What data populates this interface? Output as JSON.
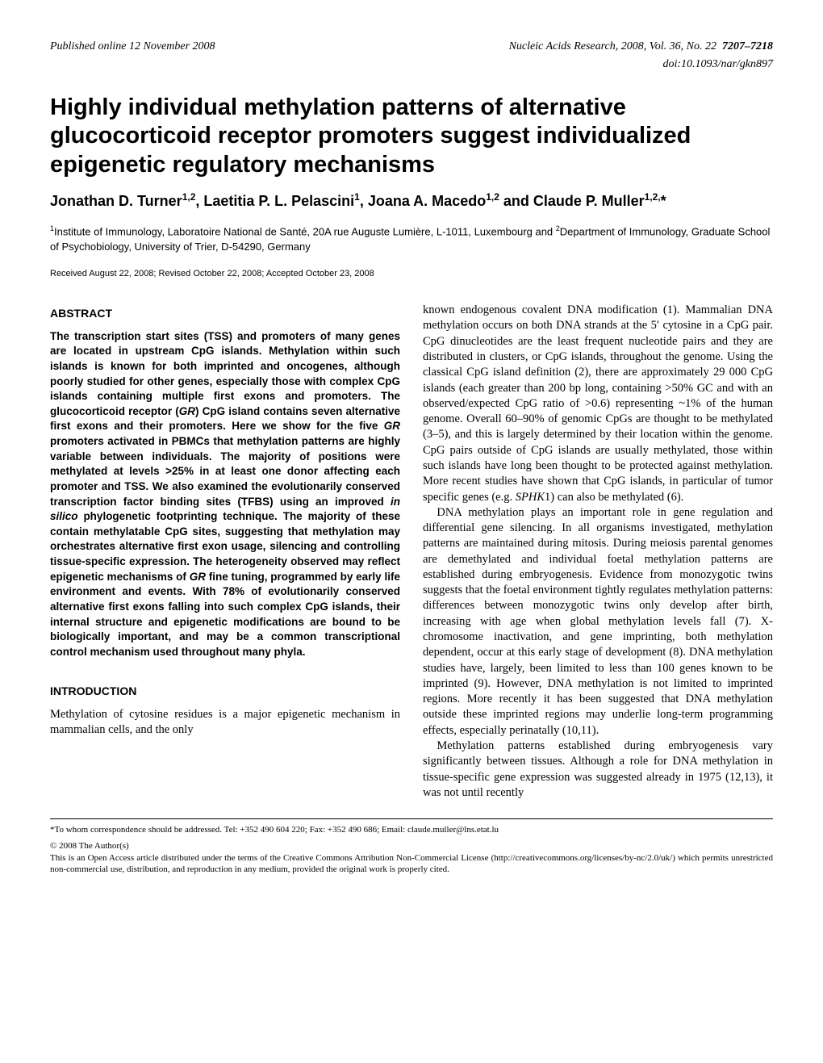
{
  "header": {
    "published": "Published online 12 November 2008",
    "journal": "Nucleic Acids Research, 2008, Vol. 36, No. 22",
    "pages": "7207–7218",
    "doi": "doi:10.1093/nar/gkn897"
  },
  "title": "Highly individual methylation patterns of alternative glucocorticoid receptor promoters suggest individualized epigenetic regulatory mechanisms",
  "authors_html": "Jonathan D. Turner<sup>1,2</sup>, Laetitia P. L. Pelascini<sup>1</sup>, Joana A. Macedo<sup>1,2</sup> and Claude P. Muller<sup>1,2,</sup>*",
  "affiliations_html": "<sup>1</sup>Institute of Immunology, Laboratoire National de Santé, 20A rue Auguste Lumière, L-1011, Luxembourg and <sup>2</sup>Department of Immunology, Graduate School of Psychobiology, University of Trier, D-54290, Germany",
  "received": "Received August 22, 2008; Revised October 22, 2008; Accepted October 23, 2008",
  "abstract_heading": "ABSTRACT",
  "abstract_html": "The transcription start sites (TSS) and promoters of many genes are located in upstream CpG islands. Methylation within such islands is known for both imprinted and oncogenes, although poorly studied for other genes, especially those with complex CpG islands containing multiple first exons and promoters. The glucocorticoid receptor (<span class=\"ital\">GR</span>) CpG island contains seven alternative first exons and their promoters. Here we show for the five <span class=\"ital\">GR</span> promoters activated in PBMCs that methylation patterns are highly variable between individuals. The majority of positions were methylated at levels >25% in at least one donor affecting each promoter and TSS. We also examined the evolutionarily conserved transcription factor binding sites (TFBS) using an improved <span class=\"ital\">in silico</span> phylogenetic footprinting technique. The majority of these contain methylatable CpG sites, suggesting that methylation may orchestrates alternative first exon usage, silencing and controlling tissue-specific expression. The heterogeneity observed may reflect epigenetic mechanisms of <span class=\"ital\">GR</span> fine tuning, programmed by early life environment and events. With 78% of evolutionarily conserved alternative first exons falling into such complex CpG islands, their internal structure and epigenetic modifications are bound to be biologically important, and may be a common transcriptional control mechanism used throughout many phyla.",
  "intro_heading": "INTRODUCTION",
  "intro_left": "Methylation of cytosine residues is a major epigenetic mechanism in mammalian cells, and the only",
  "right_p1_html": "known endogenous covalent DNA modification (1). Mammalian DNA methylation occurs on both DNA strands at the 5′ cytosine in a CpG pair. CpG dinucleotides are the least frequent nucleotide pairs and they are distributed in clusters, or CpG islands, throughout the genome. Using the classical CpG island definition (2), there are approximately 29 000 CpG islands (each greater than 200 bp long, containing >50% GC and with an observed/expected CpG ratio of >0.6) representing ~1% of the human genome. Overall 60–90% of genomic CpGs are thought to be methylated (3–5), and this is largely determined by their location within the genome. CpG pairs outside of CpG islands are usually methylated, those within such islands have long been thought to be protected against methylation. More recent studies have shown that CpG islands, in particular of tumor specific genes (e.g. <span class=\"ital\">SPHK</span>1) can also be methylated (6).",
  "right_p2": "DNA methylation plays an important role in gene regulation and differential gene silencing. In all organisms investigated, methylation patterns are maintained during mitosis. During meiosis parental genomes are demethylated and individual foetal methylation patterns are established during embryogenesis. Evidence from monozygotic twins suggests that the foetal environment tightly regulates methylation patterns: differences between monozygotic twins only develop after birth, increasing with age when global methylation levels fall (7). X-chromosome inactivation, and gene imprinting, both methylation dependent, occur at this early stage of development (8). DNA methylation studies have, largely, been limited to less than 100 genes known to be imprinted (9). However, DNA methylation is not limited to imprinted regions. More recently it has been suggested that DNA methylation outside these imprinted regions may underlie long-term programming effects, especially perinatally (10,11).",
  "right_p3": "Methylation patterns established during embryogenesis vary significantly between tissues. Although a role for DNA methylation in tissue-specific gene expression was suggested already in 1975 (12,13), it was not until recently",
  "footer": {
    "correspondence": "*To whom correspondence should be addressed. Tel: +352 490 604 220; Fax: +352 490 686; Email: claude.muller@lns.etat.lu",
    "copyright": "© 2008 The Author(s)",
    "license": "This is an Open Access article distributed under the terms of the Creative Commons Attribution Non-Commercial License (http://creativecommons.org/licenses/by-nc/2.0/uk/) which permits unrestricted non-commercial use, distribution, and reproduction in any medium, provided the original work is properly cited."
  }
}
